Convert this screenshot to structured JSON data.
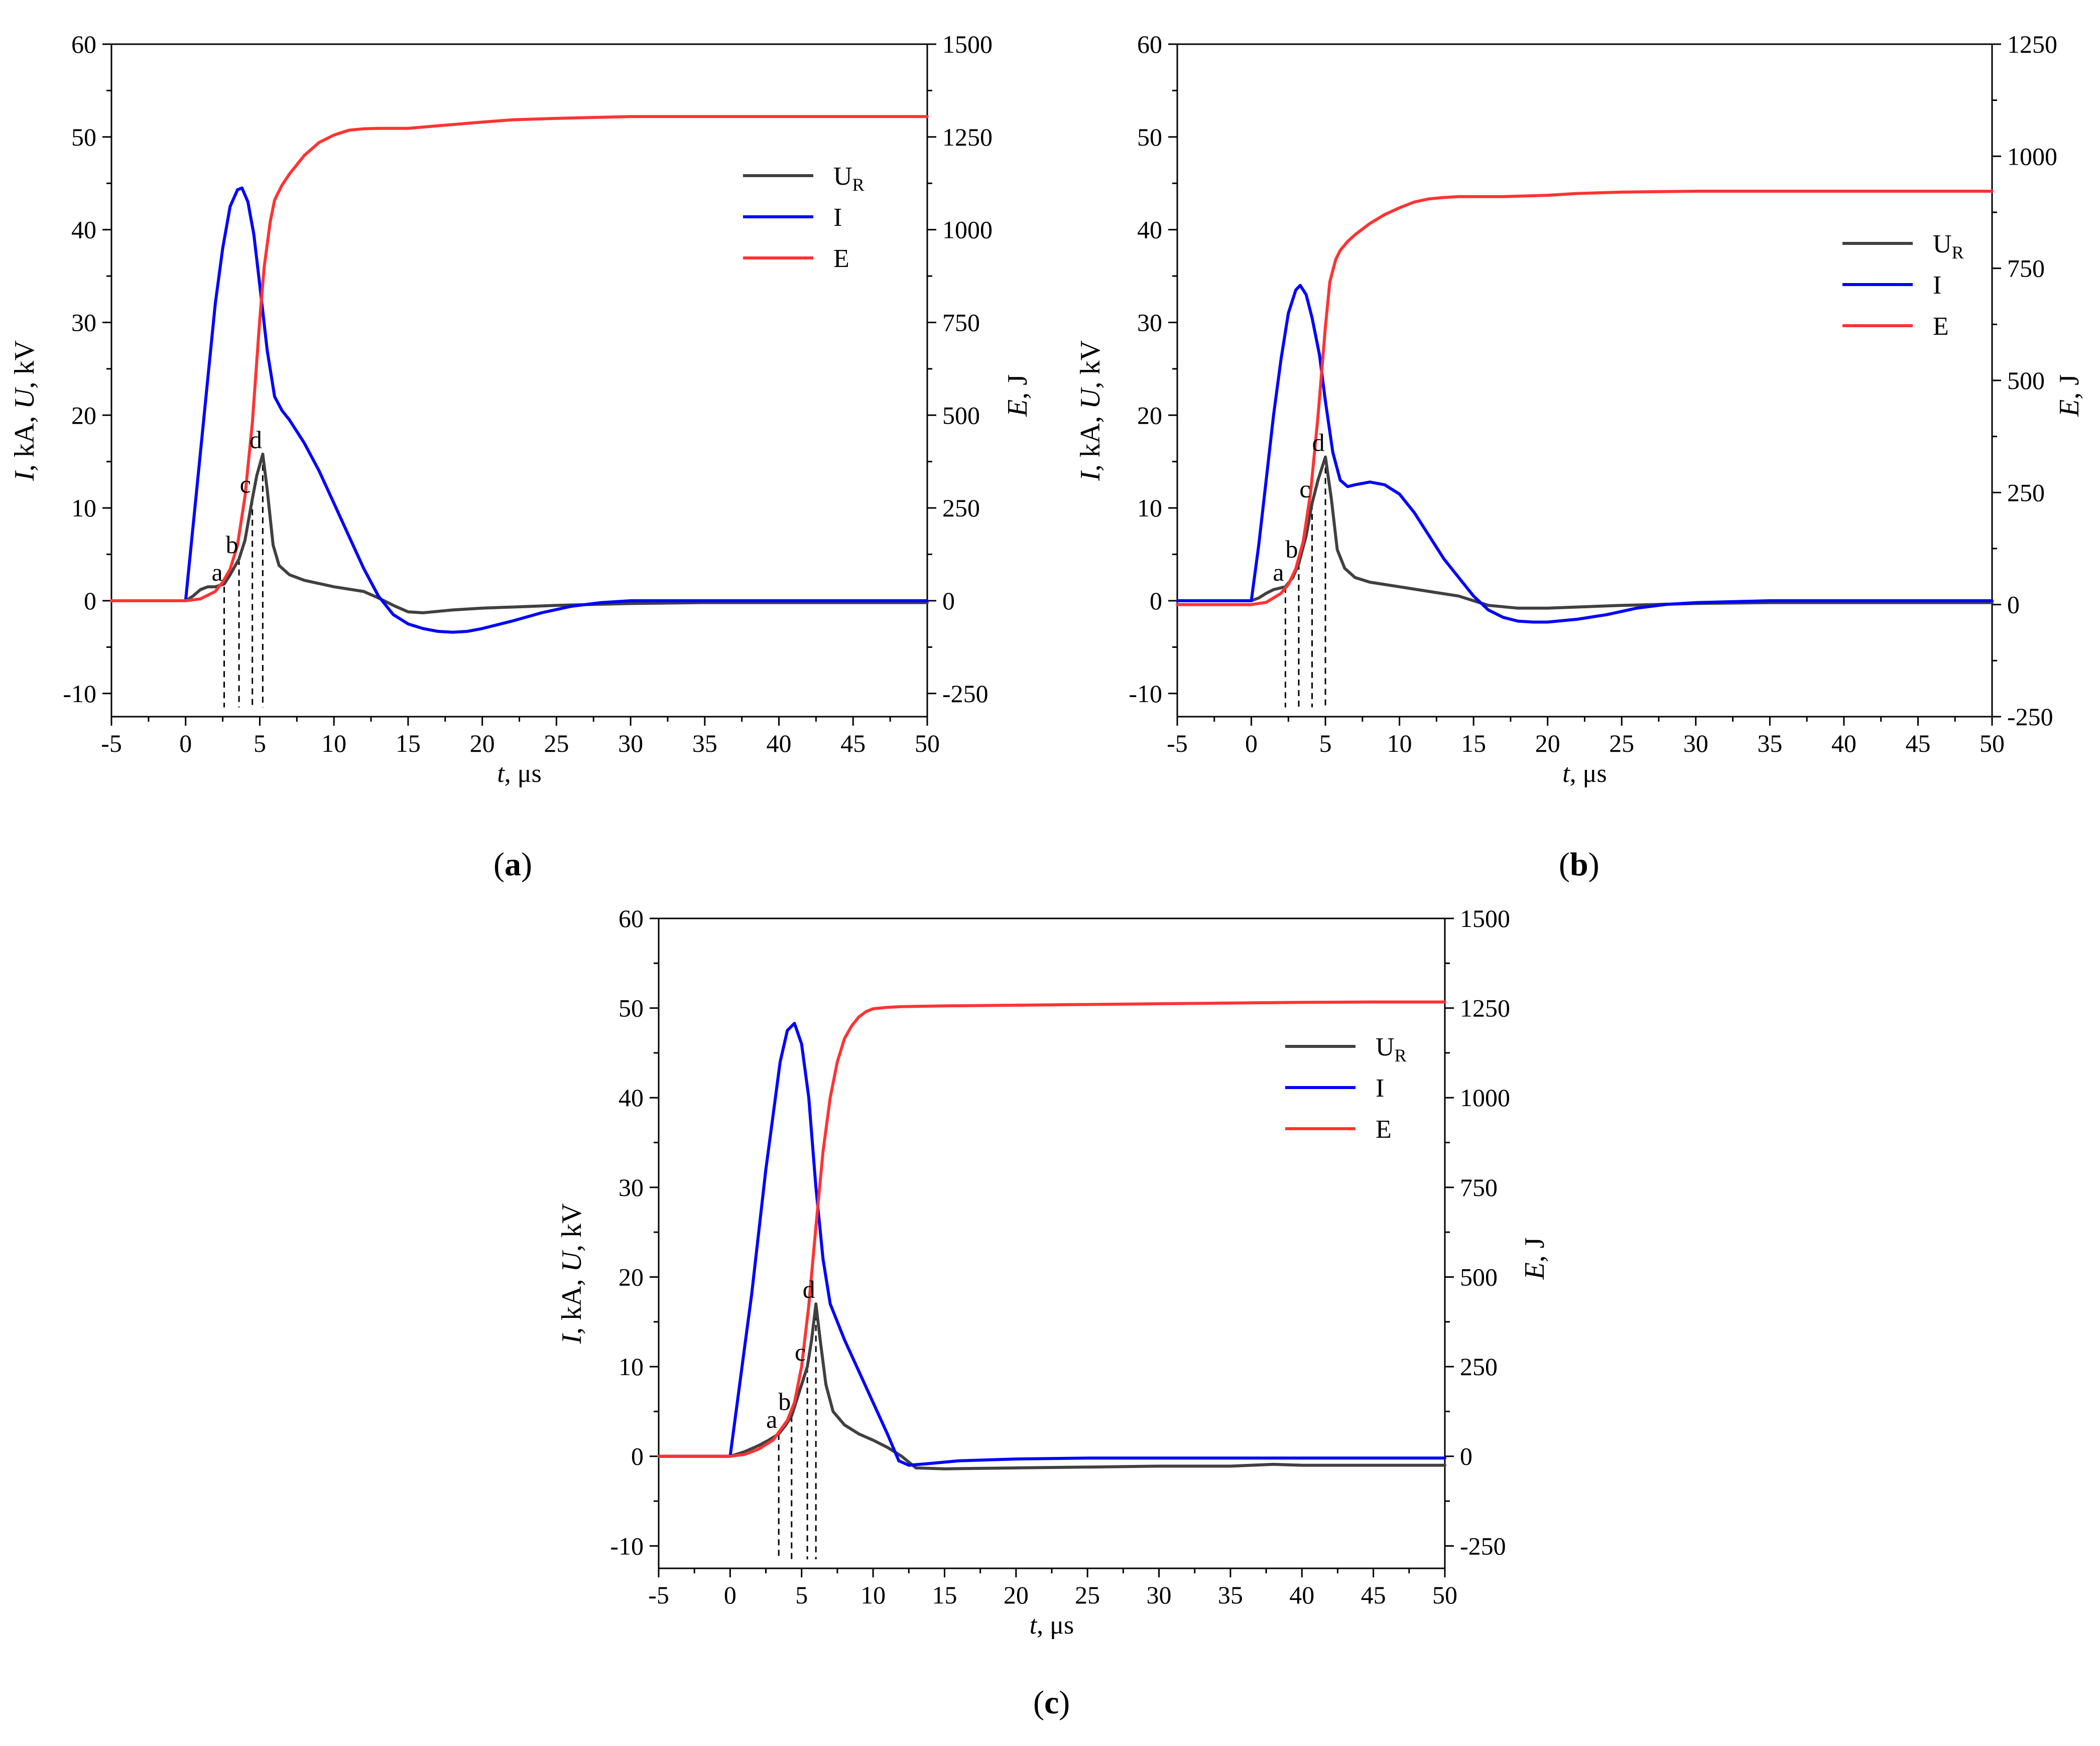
{
  "figure": {
    "panels": [
      "a",
      "b",
      "c"
    ]
  },
  "chart_data": [
    {
      "panel": "a",
      "panel_label": "a",
      "type": "line",
      "xlabel_italic": "t",
      "xlabel_rest": ", μs",
      "ylabel_left_parts": [
        "I",
        ", kA, ",
        "U",
        ", kV"
      ],
      "ylabel_right_parts": [
        "E",
        ", J"
      ],
      "xlim": [
        -5,
        50
      ],
      "ylim_left": [
        -12.5,
        60
      ],
      "ylim_right": [
        -312.5,
        1500
      ],
      "x_ticks": [
        -5,
        0,
        5,
        10,
        15,
        20,
        25,
        30,
        35,
        40,
        45,
        50
      ],
      "y_left_ticks": [
        -10,
        0,
        10,
        20,
        30,
        40,
        50,
        60
      ],
      "y_right_ticks": [
        -250,
        0,
        250,
        500,
        750,
        1000,
        1250,
        1500
      ],
      "legend": [
        {
          "name": "U",
          "sub": "R",
          "color": "#404040"
        },
        {
          "name": "I",
          "sub": "",
          "color": "#0000ff"
        },
        {
          "name": "E",
          "sub": "",
          "color": "#ff3333"
        }
      ],
      "markers": [
        {
          "label": "a",
          "t": 2.6,
          "u": 1.5
        },
        {
          "label": "b",
          "t": 3.6,
          "u": 4.5
        },
        {
          "label": "c",
          "t": 4.5,
          "u": 11.0
        },
        {
          "label": "d",
          "t": 5.2,
          "u": 15.8
        }
      ],
      "series": [
        {
          "name": "UR",
          "axis": "left",
          "color": "#404040",
          "x": [
            -5,
            0,
            0.5,
            1,
            1.5,
            2,
            2.6,
            3,
            3.6,
            4,
            4.5,
            4.8,
            5.2,
            5.5,
            5.9,
            6.3,
            7,
            8,
            10,
            12,
            13,
            14,
            15,
            16,
            18,
            20,
            25,
            30,
            35,
            40,
            45,
            50
          ],
          "y": [
            0,
            0,
            0.5,
            1.2,
            1.5,
            1.5,
            1.8,
            2.8,
            4.5,
            6.5,
            11.0,
            13.5,
            15.8,
            12.0,
            6.0,
            3.8,
            2.8,
            2.2,
            1.5,
            1.0,
            0.3,
            -0.5,
            -1.2,
            -1.3,
            -1.0,
            -0.8,
            -0.5,
            -0.3,
            -0.2,
            -0.2,
            -0.2,
            -0.2
          ]
        },
        {
          "name": "I",
          "axis": "left",
          "color": "#0000ff",
          "x": [
            -5,
            0,
            0.5,
            1,
            1.5,
            2,
            2.5,
            3,
            3.5,
            3.8,
            4.2,
            4.6,
            5,
            5.5,
            6,
            6.5,
            7,
            8,
            9,
            10,
            11,
            12,
            13,
            14,
            15,
            16,
            17,
            18,
            19,
            20,
            22,
            24,
            26,
            28,
            30,
            35,
            40,
            45,
            50
          ],
          "y": [
            0,
            0,
            8,
            16,
            24,
            32,
            38,
            42.5,
            44.3,
            44.5,
            43.0,
            39.5,
            34.0,
            27.0,
            22.0,
            20.5,
            19.5,
            17.0,
            14.0,
            10.5,
            7.0,
            3.5,
            0.5,
            -1.5,
            -2.5,
            -3.0,
            -3.3,
            -3.4,
            -3.3,
            -3.0,
            -2.2,
            -1.3,
            -0.6,
            -0.2,
            0,
            0,
            0,
            0,
            0
          ]
        },
        {
          "name": "E",
          "axis": "right",
          "color": "#ff3333",
          "x": [
            -5,
            0,
            1,
            2,
            2.5,
            3,
            3.5,
            4,
            4.5,
            5,
            5.3,
            5.7,
            6,
            6.5,
            7,
            8,
            9,
            10,
            11,
            12,
            13,
            14,
            15,
            17,
            20,
            22,
            25,
            30,
            35,
            40,
            45,
            50
          ],
          "y": [
            0,
            0,
            5,
            25,
            50,
            85,
            150,
            280,
            480,
            760,
            900,
            1020,
            1080,
            1120,
            1150,
            1200,
            1235,
            1255,
            1268,
            1272,
            1273,
            1273,
            1273,
            1280,
            1290,
            1296,
            1300,
            1305,
            1305,
            1305,
            1305,
            1305
          ]
        }
      ]
    },
    {
      "panel": "b",
      "panel_label": "b",
      "type": "line",
      "xlabel_italic": "t",
      "xlabel_rest": ", μs",
      "ylabel_left_parts": [
        "I",
        ", kA, ",
        "U",
        ", kV"
      ],
      "ylabel_right_parts": [
        "E",
        ", J"
      ],
      "xlim": [
        -5,
        50
      ],
      "ylim_left": [
        -12.5,
        60
      ],
      "ylim_right": [
        -250,
        1250
      ],
      "x_ticks": [
        -5,
        0,
        5,
        10,
        15,
        20,
        25,
        30,
        35,
        40,
        45,
        50
      ],
      "y_left_ticks": [
        -10,
        0,
        10,
        20,
        30,
        40,
        50,
        60
      ],
      "y_right_ticks": [
        -250,
        0,
        250,
        500,
        750,
        1000,
        1250
      ],
      "legend": [
        {
          "name": "U",
          "sub": "R",
          "color": "#404040"
        },
        {
          "name": "I",
          "sub": "",
          "color": "#0000ff"
        },
        {
          "name": "E",
          "sub": "",
          "color": "#ff3333"
        }
      ],
      "markers": [
        {
          "label": "a",
          "t": 2.3,
          "u": 1.5
        },
        {
          "label": "b",
          "t": 3.2,
          "u": 4.0
        },
        {
          "label": "c",
          "t": 4.1,
          "u": 10.5
        },
        {
          "label": "d",
          "t": 5.0,
          "u": 15.5
        }
      ],
      "series": [
        {
          "name": "UR",
          "axis": "left",
          "color": "#404040",
          "x": [
            -5,
            0,
            0.5,
            1,
            1.5,
            2.3,
            2.8,
            3.2,
            3.7,
            4.1,
            4.5,
            5.0,
            5.4,
            5.8,
            6.3,
            7,
            8,
            10,
            12,
            14,
            15,
            16,
            18,
            20,
            25,
            30,
            35,
            40,
            45,
            50
          ],
          "y": [
            0,
            0,
            0.3,
            0.8,
            1.2,
            1.5,
            2.5,
            4.0,
            7.0,
            10.5,
            13.0,
            15.5,
            11.0,
            5.5,
            3.5,
            2.5,
            2.0,
            1.5,
            1.0,
            0.5,
            0,
            -0.5,
            -0.8,
            -0.8,
            -0.5,
            -0.3,
            -0.2,
            -0.2,
            -0.2,
            -0.2
          ]
        },
        {
          "name": "I",
          "axis": "left",
          "color": "#0000ff",
          "x": [
            -5,
            0,
            0.5,
            1,
            1.5,
            2,
            2.5,
            3,
            3.3,
            3.7,
            4.1,
            4.6,
            5,
            5.5,
            6,
            6.5,
            7,
            8,
            9,
            10,
            11,
            12,
            13,
            14,
            15,
            16,
            17,
            18,
            19,
            20,
            22,
            24,
            26,
            28,
            30,
            35,
            40,
            45,
            50
          ],
          "y": [
            0,
            0,
            6,
            13,
            20,
            26,
            31,
            33.5,
            34.0,
            33.0,
            30.5,
            26.5,
            21.5,
            16.0,
            13.0,
            12.3,
            12.5,
            12.8,
            12.5,
            11.5,
            9.5,
            7.0,
            4.5,
            2.5,
            0.5,
            -1.0,
            -1.8,
            -2.2,
            -2.3,
            -2.3,
            -2.0,
            -1.5,
            -0.8,
            -0.4,
            -0.2,
            0,
            0,
            0,
            0
          ]
        },
        {
          "name": "E",
          "axis": "right",
          "color": "#ff3333",
          "x": [
            -5,
            0,
            1,
            2,
            2.5,
            3,
            3.5,
            4,
            4.5,
            5,
            5.3,
            5.7,
            6,
            6.5,
            7,
            8,
            9,
            10,
            11,
            12,
            13,
            14,
            15,
            17,
            20,
            22,
            25,
            30,
            35,
            40,
            45,
            50
          ],
          "y": [
            0,
            0,
            5,
            25,
            45,
            80,
            140,
            250,
            420,
            620,
            720,
            770,
            790,
            810,
            825,
            850,
            870,
            885,
            898,
            905,
            908,
            910,
            910,
            910,
            913,
            917,
            920,
            922,
            922,
            922,
            922,
            922
          ]
        }
      ]
    },
    {
      "panel": "c",
      "panel_label": "c",
      "type": "line",
      "xlabel_italic": "t",
      "xlabel_rest": ", μs",
      "ylabel_left_parts": [
        "I",
        ", kA, ",
        "U",
        ", kV"
      ],
      "ylabel_right_parts": [
        "E",
        ", J"
      ],
      "xlim": [
        -5,
        50
      ],
      "ylim_left": [
        -12.5,
        60
      ],
      "ylim_right": [
        -312.5,
        1500
      ],
      "x_ticks": [
        -5,
        0,
        5,
        10,
        15,
        20,
        25,
        30,
        35,
        40,
        45,
        50
      ],
      "y_left_ticks": [
        -10,
        0,
        10,
        20,
        30,
        40,
        50,
        60
      ],
      "y_right_ticks": [
        -250,
        0,
        250,
        500,
        750,
        1000,
        1250,
        1500
      ],
      "legend": [
        {
          "name": "U",
          "sub": "R",
          "color": "#404040"
        },
        {
          "name": "I",
          "sub": "",
          "color": "#0000ff"
        },
        {
          "name": "E",
          "sub": "",
          "color": "#ff3333"
        }
      ],
      "markers": [
        {
          "label": "a",
          "t": 3.4,
          "u": 2.5
        },
        {
          "label": "b",
          "t": 4.3,
          "u": 4.5
        },
        {
          "label": "c",
          "t": 5.4,
          "u": 10.0
        },
        {
          "label": "d",
          "t": 6.0,
          "u": 17.0
        }
      ],
      "series": [
        {
          "name": "UR",
          "axis": "left",
          "color": "#404040",
          "x": [
            -5,
            0,
            1,
            2,
            2.7,
            3.4,
            3.9,
            4.3,
            4.8,
            5.4,
            5.7,
            6.0,
            6.3,
            6.7,
            7.2,
            8,
            9,
            10,
            11,
            12,
            13,
            15,
            20,
            25,
            30,
            35,
            38,
            40,
            45,
            50
          ],
          "y": [
            0,
            0,
            0.5,
            1.2,
            1.8,
            2.5,
            3.5,
            4.5,
            7.0,
            10.0,
            13.0,
            17.0,
            13.0,
            8.0,
            5.0,
            3.5,
            2.5,
            1.8,
            1.0,
            0,
            -1.3,
            -1.4,
            -1.3,
            -1.2,
            -1.1,
            -1.1,
            -0.9,
            -1.0,
            -1.0,
            -1.0
          ]
        },
        {
          "name": "I",
          "axis": "left",
          "color": "#0000ff",
          "x": [
            -5,
            0,
            0.5,
            1,
            1.5,
            2,
            2.5,
            3,
            3.5,
            4,
            4.5,
            5,
            5.5,
            6,
            6.5,
            7,
            8,
            9,
            10,
            11,
            11.8,
            12.5,
            14,
            16,
            20,
            25,
            30,
            35,
            40,
            45,
            50
          ],
          "y": [
            0,
            0,
            6,
            12,
            18,
            25,
            32,
            38,
            44,
            47.5,
            48.3,
            46.0,
            40.0,
            30.0,
            22.0,
            17.0,
            13.0,
            9.5,
            6.0,
            2.5,
            -0.5,
            -1.0,
            -0.8,
            -0.5,
            -0.3,
            -0.2,
            -0.2,
            -0.2,
            -0.2,
            -0.2,
            -0.2
          ]
        },
        {
          "name": "E",
          "axis": "right",
          "color": "#ff3333",
          "x": [
            -5,
            0,
            1,
            2,
            3,
            4,
            4.5,
            5,
            5.5,
            6,
            6.5,
            7,
            7.5,
            8,
            8.5,
            9,
            9.5,
            10,
            11,
            12,
            15,
            20,
            25,
            30,
            35,
            40,
            45,
            50
          ],
          "y": [
            0,
            0,
            5,
            20,
            45,
            100,
            150,
            250,
            420,
            640,
            850,
            1000,
            1100,
            1165,
            1200,
            1225,
            1240,
            1248,
            1252,
            1254,
            1256,
            1258,
            1260,
            1262,
            1264,
            1266,
            1267,
            1267
          ]
        }
      ]
    }
  ]
}
